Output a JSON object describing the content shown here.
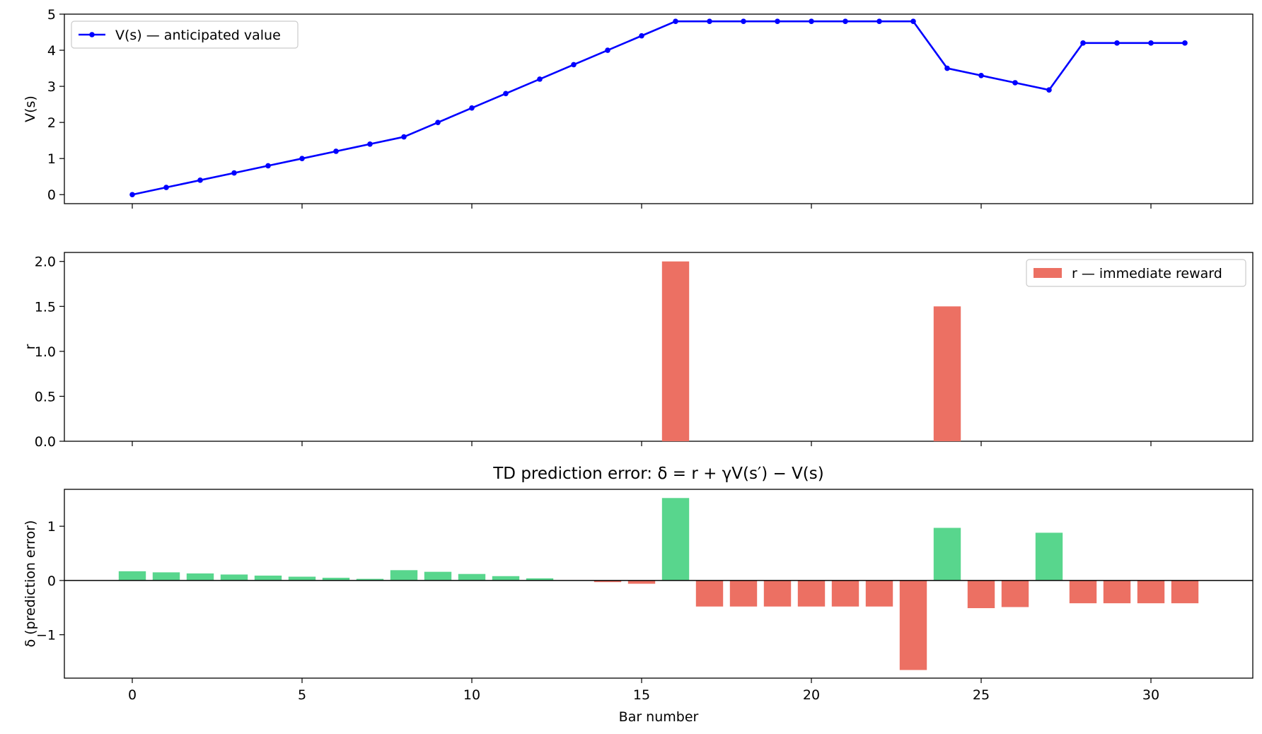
{
  "chart_data": [
    {
      "type": "line",
      "title": "",
      "xlabel": "",
      "ylabel": "V(s)",
      "xlim": [
        -2,
        33
      ],
      "ylim": [
        -0.25,
        5
      ],
      "xticks": [
        0,
        5,
        10,
        15,
        20,
        25,
        30
      ],
      "yticks": [
        0,
        1,
        2,
        3,
        4,
        5
      ],
      "legend_position": "top-left",
      "grid": false,
      "series": [
        {
          "name": "V(s) — anticipated value",
          "color": "#0000ff",
          "x": [
            0,
            1,
            2,
            3,
            4,
            5,
            6,
            7,
            8,
            9,
            10,
            11,
            12,
            13,
            14,
            15,
            16,
            17,
            18,
            19,
            20,
            21,
            22,
            23,
            24,
            25,
            26,
            27,
            28,
            29,
            30,
            31
          ],
          "values": [
            0,
            0.2,
            0.4,
            0.6,
            0.8,
            1.0,
            1.2,
            1.4,
            1.6,
            2.0,
            2.4,
            2.8,
            3.2,
            3.6,
            4.0,
            4.4,
            4.8,
            4.8,
            4.8,
            4.8,
            4.8,
            4.8,
            4.8,
            4.8,
            3.5,
            3.3,
            3.1,
            2.9,
            4.2,
            4.2,
            4.2,
            4.2
          ]
        }
      ]
    },
    {
      "type": "bar",
      "title": "",
      "xlabel": "",
      "ylabel": "r",
      "xlim": [
        -2,
        33
      ],
      "ylim": [
        0,
        2.1
      ],
      "xticks": [
        0,
        5,
        10,
        15,
        20,
        25,
        30
      ],
      "yticks": [
        "0.0",
        "0.5",
        "1.0",
        "1.5",
        "2.0"
      ],
      "legend_position": "top-right",
      "grid": false,
      "series": [
        {
          "name": "r — immediate reward",
          "color": "#ec7063",
          "x": [
            16,
            24
          ],
          "values": [
            2.0,
            1.5
          ]
        }
      ]
    },
    {
      "type": "bar",
      "title": "TD prediction error: δ = r + γV(s′) − V(s)",
      "xlabel": "Bar number",
      "ylabel": "δ (prediction error)",
      "xlim": [
        -2,
        33
      ],
      "ylim": [
        -1.8,
        1.68
      ],
      "xticks": [
        0,
        5,
        10,
        15,
        20,
        25,
        30
      ],
      "xtick_labels": [
        "0",
        "5",
        "10",
        "15",
        "20",
        "25",
        "30"
      ],
      "yticks": [
        -1,
        0,
        1
      ],
      "ytick_labels": [
        "−1",
        "0",
        "1"
      ],
      "grid": false,
      "positive_color": "#58d68d",
      "negative_color": "#ec7063",
      "x": [
        0,
        1,
        2,
        3,
        4,
        5,
        6,
        7,
        8,
        9,
        10,
        11,
        12,
        13,
        14,
        15,
        16,
        17,
        18,
        19,
        20,
        21,
        22,
        23,
        24,
        25,
        26,
        27,
        28,
        29,
        30,
        31
      ],
      "values": [
        0.17,
        0.15,
        0.13,
        0.11,
        0.09,
        0.07,
        0.05,
        0.03,
        0.19,
        0.16,
        0.12,
        0.08,
        0.04,
        0.0,
        -0.03,
        -0.06,
        1.52,
        -0.48,
        -0.48,
        -0.48,
        -0.48,
        -0.48,
        -0.48,
        -1.65,
        0.97,
        -0.51,
        -0.49,
        0.88,
        -0.42,
        -0.42,
        -0.42,
        -0.42
      ]
    }
  ]
}
